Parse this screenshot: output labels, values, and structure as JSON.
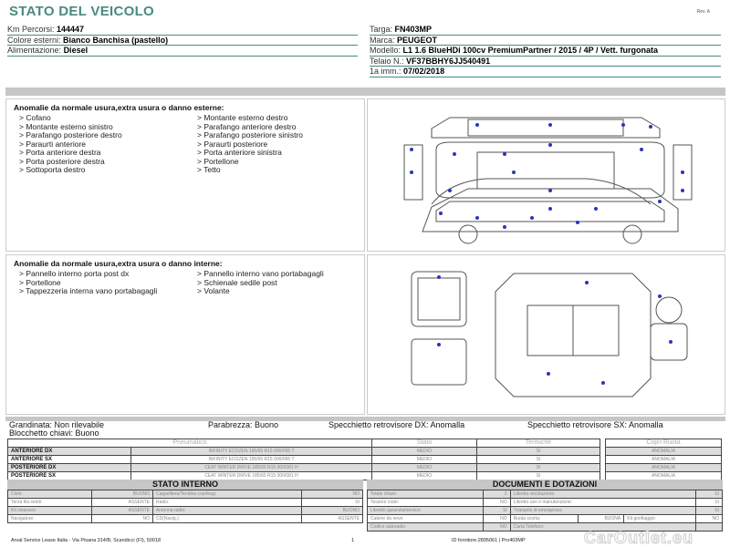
{
  "header": {
    "title": "STATO DEL VEICOLO",
    "rev": "Rev. A"
  },
  "vehicle_left": [
    {
      "label": "Km Percorsi:",
      "value": "144447"
    },
    {
      "label": "Colore esterni:",
      "value": "Bianco Banchisa (pastello)"
    },
    {
      "label": "Alimentazione:",
      "value": "Diesel"
    }
  ],
  "vehicle_right": [
    {
      "label": "Targa:",
      "value": "FN403MP"
    },
    {
      "label": "Marca:",
      "value": "PEUGEOT"
    },
    {
      "label": "Modello:",
      "value": "L1 1.6 BlueHDi 100cv PremiumPartner / 2015 / 4P / Vett. furgonata"
    },
    {
      "label": "Telaio N.:",
      "value": "VF37BBHY6JJ540491"
    },
    {
      "label": "1a imm.:",
      "value": "07/02/2018"
    }
  ],
  "exterior": {
    "title": "Anomalie da normale usura,extra usura o danno esterne:",
    "col1": [
      "> Cofano",
      "> Montante esterno sinistro",
      "> Parafango posteriore destro",
      "> Paraurti anteriore",
      "> Porta anteriore destra",
      "> Porta posteriore destra",
      "> Sottoporta destro"
    ],
    "col2": [
      "> Montante esterno destro",
      "> Parafango anteriore destro",
      "> Parafango posteriore sinistro",
      "> Paraurti posteriore",
      "> Porta anteriore sinistra",
      "> Portellone",
      "> Tetto"
    ]
  },
  "interior": {
    "title": "Anomalie da normale usura,extra usura o danno interne:",
    "col1": [
      "> Pannello interno porta post dx",
      "> Portellone",
      "> Tappezzeria interna vano portabagagli"
    ],
    "col2": [
      "> Pannello interno vano portabagagli",
      "> Schienale sedile post",
      "> Volante"
    ]
  },
  "checks": {
    "grandinata": "Grandinata: Non rilevabile",
    "blocchetto": "Blocchetto chiavi: Buono",
    "parabrezza": "Parabrezza: Buono",
    "spec_dx": "Specchietto retrovisore DX: Anomalla",
    "spec_sx": "Specchietto retrovisore SX: Anomalla"
  },
  "tires": {
    "headers": [
      "Pneumatico",
      "Stato",
      "Termiche",
      "Copri Ruota"
    ],
    "rows": [
      {
        "pos": "ANTERIORE DX",
        "tire": "INFINITY ECOZEN 195/65 R15 000/095 T",
        "stato": "MEDIO",
        "term": "SI",
        "copri": "ANOMALIA"
      },
      {
        "pos": "ANTERIORE SX",
        "tire": "INFINITY ECOZEN 195/65 R15 000/095 T",
        "stato": "MEDIO",
        "term": "SI",
        "copri": "ANOMALIA"
      },
      {
        "pos": "POSTERIORE DX",
        "tire": "CEAT WINTER DRIVE 185/65 R15 000/081 H",
        "stato": "MEDIO",
        "term": "SI",
        "copri": "ANOMALIA"
      },
      {
        "pos": "POSTERIORE SX",
        "tire": "CEAT WINTER DRIVE 185/65 R15 000/081 H",
        "stato": "MEDIO",
        "term": "SI",
        "copri": "ANOMALIA"
      }
    ]
  },
  "stato_interno": {
    "title": "STATO INTERNO",
    "rows": [
      [
        "Cielo:",
        "BUONO",
        "Cappelliera/Tendina copribag:",
        "NO"
      ],
      [
        "Terza fila sedili:",
        "ASSENTE",
        "Radio:",
        "SI"
      ],
      [
        "Kit vivavoce:",
        "ASSENTE",
        "Antenna radio:",
        "BUONO"
      ],
      [
        "Navigatore:",
        "NO",
        "CD(Navig.):",
        "ASSENTE"
      ]
    ]
  },
  "documenti": {
    "title": "DOCUMENTI E DOTAZIONI",
    "rows": [
      [
        "Totale chiavi:",
        "2",
        "Libretto circolazione:",
        "SI"
      ],
      [
        "Tessere code:",
        "NO",
        "Libretto uso e manutenzione:",
        "SI"
      ],
      [
        "Libretto garanzia/service:",
        "SI",
        "Triangolo di emergenza:",
        "SI"
      ],
      [
        "Catene da neve:",
        "NO",
        "Ruota scorta:",
        "BUONA",
        "Kit gonfiaggio:",
        "NO"
      ],
      [
        "Codice autoradio:",
        "NO",
        "Carta Telefono:",
        ""
      ]
    ]
  },
  "footer": {
    "address": "Arval Service Lease Italia - Via Pisana 314/B, Scandicci (FI), 50018",
    "page": "1",
    "id": "ID fornitore:2895061 | Pro403MP",
    "watermark": "CarOutlet.eu"
  },
  "colors": {
    "accent": "#4a8a7e",
    "marker": "#2a36b8",
    "bar": "#c6c6c6"
  }
}
